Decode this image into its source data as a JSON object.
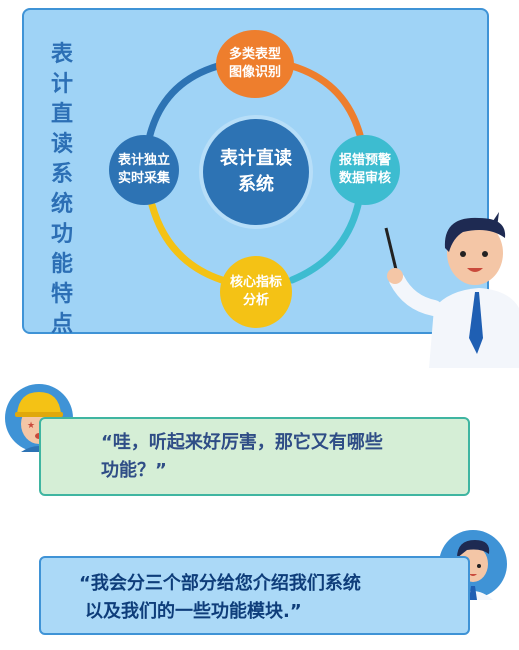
{
  "title": "表计直读系统功能特点",
  "center": {
    "line1": "表计直读",
    "line2": "系统"
  },
  "nodes": {
    "top": {
      "line1": "多类表型",
      "line2": "图像识别"
    },
    "right": {
      "line1": "报错预警",
      "line2": "数据审核"
    },
    "left": {
      "line1": "表计独立",
      "line2": "实时采集"
    },
    "bottom": {
      "line1": "核心指标",
      "line2": "分析"
    }
  },
  "dialog": {
    "question": {
      "line1": "“哇，听起来好厉害，那它又有哪些",
      "line2": "功能？”"
    },
    "answer": {
      "line1": "“我会分三个部分给您介绍我们系统",
      "line2": "以及我们的一些功能模块.”"
    }
  },
  "colors": {
    "panel": "#9fd3f6",
    "panel_border": "#3f93d6",
    "orange": "#ee7e2d",
    "teal": "#3dbcd0",
    "blue": "#2d73b4",
    "yellow": "#f4c215",
    "question_bg": "#d5eed6",
    "answer_bg": "#abd9f7"
  }
}
